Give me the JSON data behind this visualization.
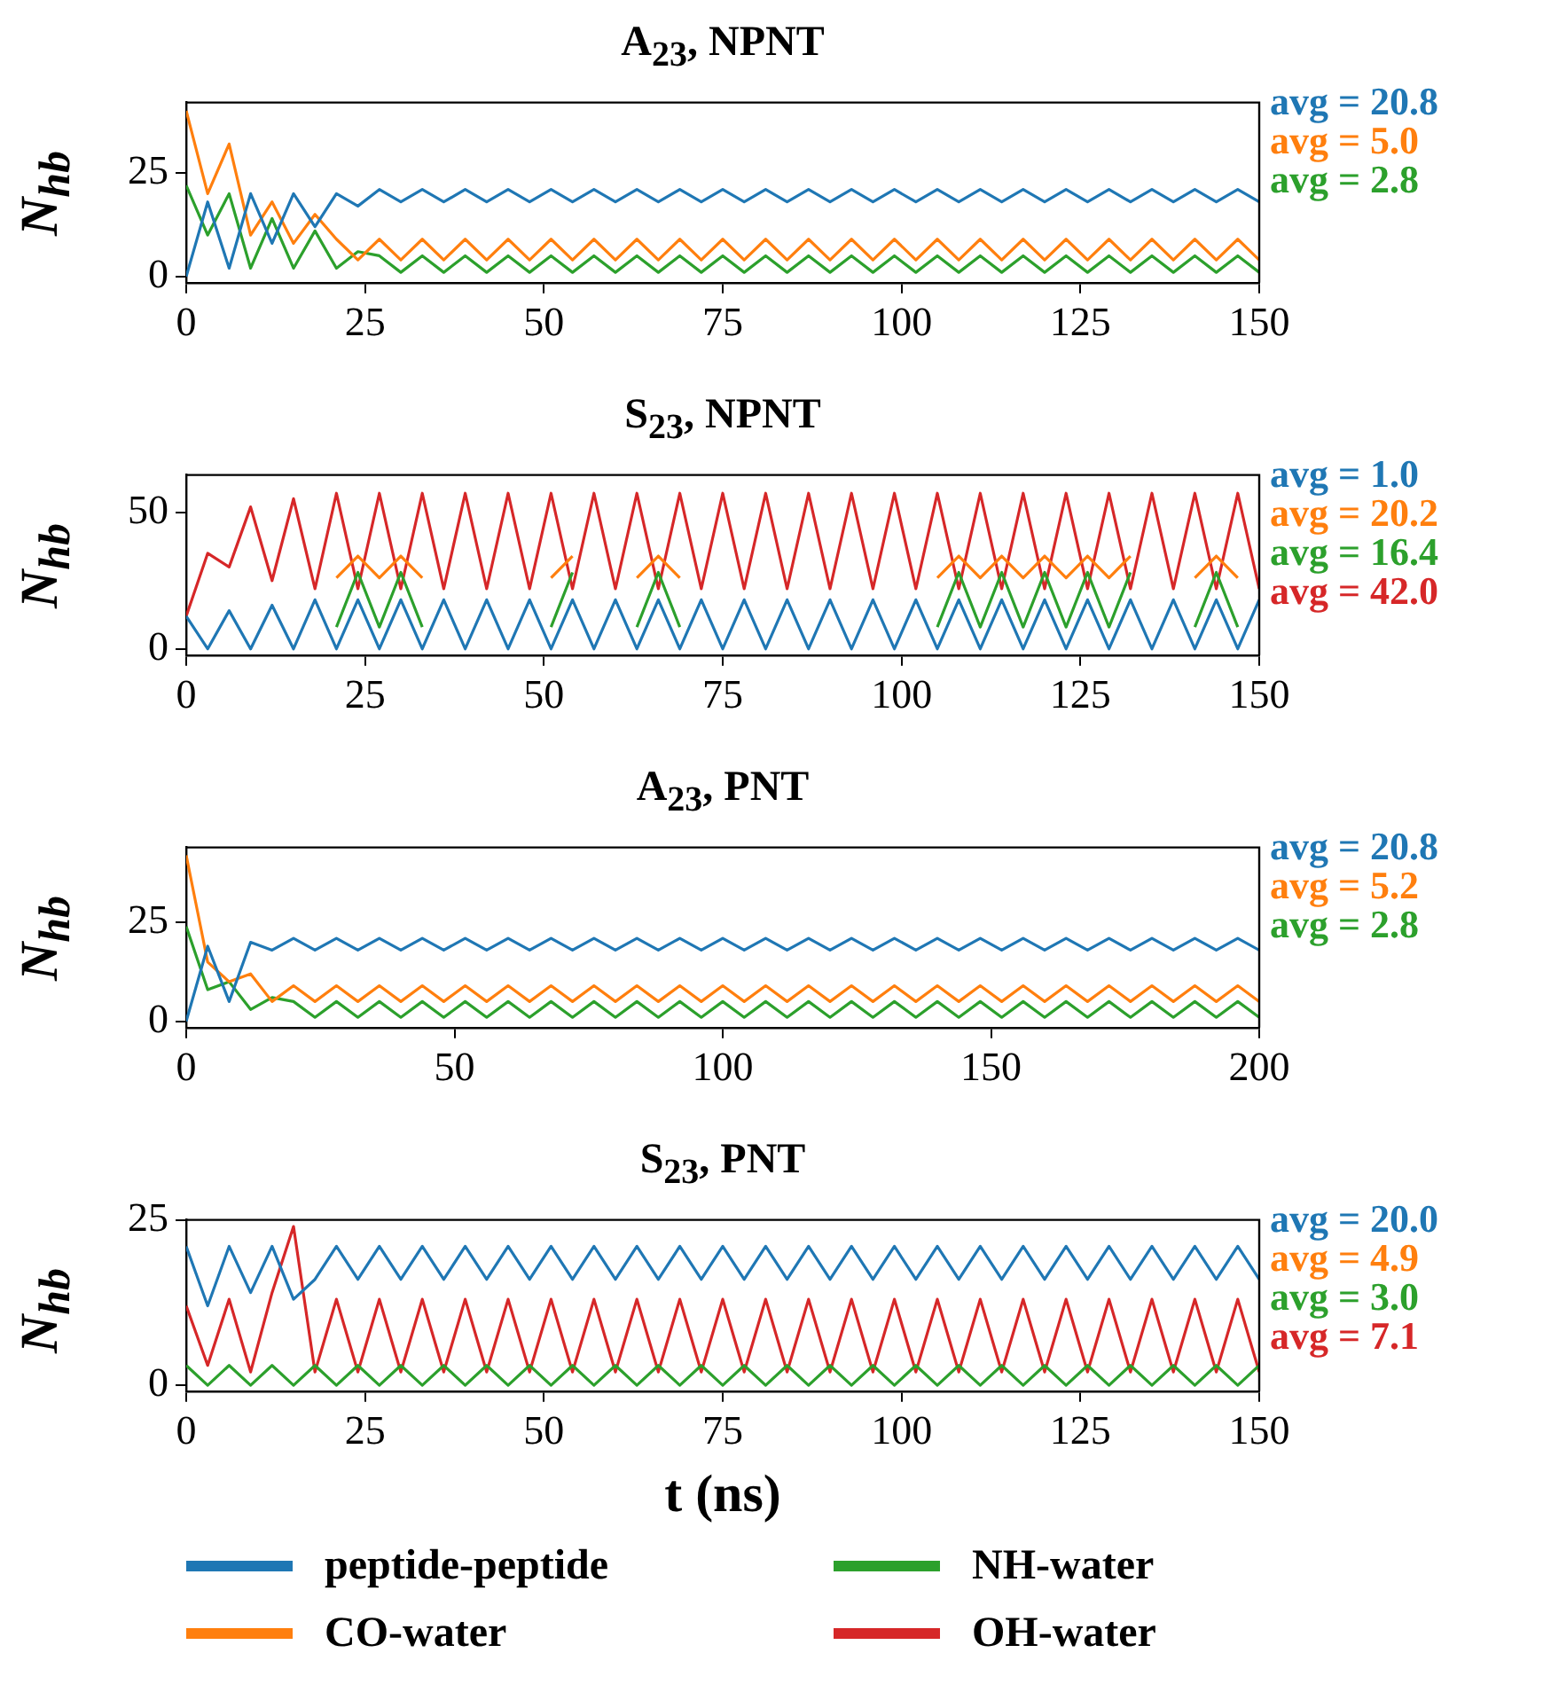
{
  "chart_data": [
    {
      "type": "line",
      "title": "A$_{23}$, NPNT",
      "ylabel": "N$_{hb}$",
      "x": [
        0,
        3,
        6,
        9,
        12,
        15,
        18,
        21,
        24,
        27,
        30,
        33,
        36,
        39,
        42,
        45,
        48,
        51,
        54,
        57,
        60,
        63,
        66,
        69,
        72,
        75,
        78,
        81,
        84,
        87,
        90,
        93,
        96,
        99,
        102,
        105,
        108,
        111,
        114,
        117,
        120,
        123,
        126,
        129,
        132,
        135,
        138,
        141,
        144,
        147,
        150
      ],
      "series": [
        {
          "color": "#1f77b4",
          "values": [
            0,
            18,
            2,
            20,
            8,
            20,
            12,
            20,
            17,
            21,
            18,
            21,
            18,
            21,
            18,
            21,
            18,
            21,
            18,
            21,
            18,
            21,
            18,
            21,
            18,
            21,
            18,
            21,
            18,
            21,
            18,
            21,
            18,
            21,
            18,
            21,
            18,
            21,
            18,
            21,
            18,
            21,
            18,
            21,
            18,
            21,
            18,
            21,
            18,
            21,
            18
          ]
        },
        {
          "color": "#ff7f0e",
          "values": [
            40,
            20,
            32,
            10,
            18,
            8,
            15,
            9,
            4,
            9,
            4,
            9,
            4,
            9,
            4,
            9,
            4,
            9,
            4,
            9,
            4,
            9,
            4,
            9,
            4,
            9,
            4,
            9,
            4,
            9,
            4,
            9,
            4,
            9,
            4,
            9,
            4,
            9,
            4,
            9,
            4,
            9,
            4,
            9,
            4,
            9,
            4,
            9,
            4,
            9,
            4
          ]
        },
        {
          "color": "#2ca02c",
          "values": [
            22,
            10,
            20,
            2,
            14,
            2,
            11,
            2,
            6,
            5,
            1,
            5,
            1,
            5,
            1,
            5,
            1,
            5,
            1,
            5,
            1,
            5,
            1,
            5,
            1,
            5,
            1,
            5,
            1,
            5,
            1,
            5,
            1,
            5,
            1,
            5,
            1,
            5,
            1,
            5,
            1,
            5,
            1,
            5,
            1,
            5,
            1,
            5,
            1,
            5,
            1
          ]
        }
      ],
      "annotations": [
        "avg = 20.8",
        "avg = 5.0",
        "avg = 2.8"
      ],
      "xlim": [
        0,
        150
      ],
      "xticks": [
        0,
        25,
        50,
        75,
        100,
        125,
        150
      ],
      "ylim": [
        -1.5,
        42
      ],
      "yticks": [
        0,
        25
      ]
    },
    {
      "type": "line",
      "title": "S$_{23}$, NPNT",
      "ylabel": "N$_{hb}$",
      "x": [
        0,
        3,
        6,
        9,
        12,
        15,
        18,
        21,
        24,
        27,
        30,
        33,
        36,
        39,
        42,
        45,
        48,
        51,
        54,
        57,
        60,
        63,
        66,
        69,
        72,
        75,
        78,
        81,
        84,
        87,
        90,
        93,
        96,
        99,
        102,
        105,
        108,
        111,
        114,
        117,
        120,
        123,
        126,
        129,
        132,
        135,
        138,
        141,
        144,
        147,
        150
      ],
      "series": [
        {
          "color": "#1f77b4",
          "values": [
            12,
            0,
            14,
            0,
            16,
            0,
            18,
            0,
            18,
            0,
            18,
            0,
            18,
            0,
            18,
            0,
            18,
            0,
            18,
            0,
            18,
            0,
            18,
            0,
            18,
            0,
            18,
            0,
            18,
            0,
            18,
            0,
            18,
            0,
            18,
            0,
            18,
            0,
            18,
            0,
            18,
            0,
            18,
            0,
            18,
            0,
            18,
            0,
            18,
            0,
            18
          ]
        },
        {
          "color": "#ff7f0e",
          "values": [
            null,
            null,
            null,
            null,
            null,
            null,
            null,
            26,
            34,
            26,
            34,
            26,
            null,
            null,
            null,
            null,
            null,
            26,
            34,
            null,
            null,
            26,
            34,
            26,
            null,
            null,
            null,
            null,
            null,
            null,
            null,
            null,
            null,
            null,
            null,
            26,
            34,
            26,
            34,
            26,
            34,
            26,
            34,
            26,
            34,
            null,
            null,
            26,
            34,
            26,
            null
          ]
        },
        {
          "color": "#2ca02c",
          "values": [
            null,
            null,
            null,
            null,
            null,
            null,
            null,
            8,
            28,
            8,
            28,
            8,
            null,
            null,
            null,
            null,
            null,
            8,
            28,
            null,
            null,
            8,
            28,
            8,
            null,
            null,
            null,
            null,
            null,
            null,
            null,
            null,
            null,
            null,
            null,
            8,
            28,
            8,
            28,
            8,
            28,
            8,
            28,
            8,
            28,
            null,
            null,
            8,
            28,
            8,
            null
          ]
        },
        {
          "color": "#d62728",
          "values": [
            12,
            35,
            30,
            52,
            25,
            55,
            22,
            57,
            22,
            57,
            22,
            57,
            22,
            57,
            22,
            57,
            22,
            57,
            22,
            57,
            22,
            57,
            22,
            57,
            22,
            57,
            22,
            57,
            22,
            57,
            22,
            57,
            22,
            57,
            22,
            57,
            22,
            57,
            22,
            57,
            22,
            57,
            22,
            57,
            22,
            57,
            22,
            57,
            22,
            57,
            22
          ]
        }
      ],
      "annotations": [
        "avg = 1.0",
        "avg = 20.2",
        "avg = 16.4",
        "avg = 42.0"
      ],
      "xlim": [
        0,
        150
      ],
      "xticks": [
        0,
        25,
        50,
        75,
        100,
        125,
        150
      ],
      "ylim": [
        -2.3,
        63.7
      ],
      "yticks": [
        0,
        50
      ]
    },
    {
      "type": "line",
      "title": "A$_{23}$, PNT",
      "ylabel": "N$_{hb}$",
      "x": [
        0,
        4,
        8,
        12,
        16,
        20,
        24,
        28,
        32,
        36,
        40,
        44,
        48,
        52,
        56,
        60,
        64,
        68,
        72,
        76,
        80,
        84,
        88,
        92,
        96,
        100,
        104,
        108,
        112,
        116,
        120,
        124,
        128,
        132,
        136,
        140,
        144,
        148,
        152,
        156,
        160,
        164,
        168,
        172,
        176,
        180,
        184,
        188,
        192,
        196,
        200
      ],
      "series": [
        {
          "color": "#1f77b4",
          "values": [
            0,
            19,
            5,
            20,
            18,
            21,
            18,
            21,
            18,
            21,
            18,
            21,
            18,
            21,
            18,
            21,
            18,
            21,
            18,
            21,
            18,
            21,
            18,
            21,
            18,
            21,
            18,
            21,
            18,
            21,
            18,
            21,
            18,
            21,
            18,
            21,
            18,
            21,
            18,
            21,
            18,
            21,
            18,
            21,
            18,
            21,
            18,
            21,
            18,
            21,
            18
          ]
        },
        {
          "color": "#ff7f0e",
          "values": [
            42,
            15,
            10,
            12,
            5,
            9,
            5,
            9,
            5,
            9,
            5,
            9,
            5,
            9,
            5,
            9,
            5,
            9,
            5,
            9,
            5,
            9,
            5,
            9,
            5,
            9,
            5,
            9,
            5,
            9,
            5,
            9,
            5,
            9,
            5,
            9,
            5,
            9,
            5,
            9,
            5,
            9,
            5,
            9,
            5,
            9,
            5,
            9,
            5,
            9,
            5
          ]
        },
        {
          "color": "#2ca02c",
          "values": [
            24,
            8,
            10,
            3,
            6,
            5,
            1,
            5,
            1,
            5,
            1,
            5,
            1,
            5,
            1,
            5,
            1,
            5,
            1,
            5,
            1,
            5,
            1,
            5,
            1,
            5,
            1,
            5,
            1,
            5,
            1,
            5,
            1,
            5,
            1,
            5,
            1,
            5,
            1,
            5,
            1,
            5,
            1,
            5,
            1,
            5,
            1,
            5,
            1,
            5,
            1
          ]
        }
      ],
      "annotations": [
        "avg = 20.8",
        "avg = 5.2",
        "avg = 2.8"
      ],
      "xlim": [
        0,
        200
      ],
      "xticks": [
        0,
        50,
        100,
        150,
        200
      ],
      "ylim": [
        -1.6,
        44
      ],
      "yticks": [
        0,
        25
      ]
    },
    {
      "type": "line",
      "title": "S$_{23}$, PNT",
      "ylabel": "N$_{hb}$",
      "xlabel": "t (ns)",
      "legend": "bottom",
      "x": [
        0,
        3,
        6,
        9,
        12,
        15,
        18,
        21,
        24,
        27,
        30,
        33,
        36,
        39,
        42,
        45,
        48,
        51,
        54,
        57,
        60,
        63,
        66,
        69,
        72,
        75,
        78,
        81,
        84,
        87,
        90,
        93,
        96,
        99,
        102,
        105,
        108,
        111,
        114,
        117,
        120,
        123,
        126,
        129,
        132,
        135,
        138,
        141,
        144,
        147,
        150
      ],
      "series": [
        {
          "name": "peptide-peptide",
          "color": "#1f77b4",
          "values": [
            21,
            12,
            21,
            14,
            21,
            13,
            16,
            21,
            16,
            21,
            16,
            21,
            16,
            21,
            16,
            21,
            16,
            21,
            16,
            21,
            16,
            21,
            16,
            21,
            16,
            21,
            16,
            21,
            16,
            21,
            16,
            21,
            16,
            21,
            16,
            21,
            16,
            21,
            16,
            21,
            16,
            21,
            16,
            21,
            16,
            21,
            16,
            21,
            16,
            21,
            16
          ]
        },
        {
          "name": "CO-water",
          "color": "#ff7f0e",
          "values": [
            null,
            null,
            null,
            null,
            null,
            null,
            null,
            null,
            null,
            null,
            null,
            null,
            null,
            null,
            null,
            null,
            null,
            null,
            null,
            null,
            null,
            null,
            null,
            null,
            null,
            null,
            null,
            null,
            null,
            null,
            null,
            null,
            null,
            null,
            null,
            null,
            null,
            null,
            null,
            null,
            null,
            null,
            null,
            null,
            null,
            null,
            null,
            null,
            null,
            null,
            null
          ]
        },
        {
          "name": "NH-water",
          "color": "#2ca02c",
          "values": [
            3,
            0,
            3,
            0,
            3,
            0,
            3,
            0,
            3,
            0,
            3,
            0,
            3,
            0,
            3,
            0,
            3,
            0,
            3,
            0,
            3,
            0,
            3,
            0,
            3,
            0,
            3,
            0,
            3,
            0,
            3,
            0,
            3,
            0,
            3,
            0,
            3,
            0,
            3,
            0,
            3,
            0,
            3,
            0,
            3,
            0,
            3,
            0,
            3,
            0,
            3
          ]
        },
        {
          "name": "OH-water",
          "color": "#d62728",
          "values": [
            12,
            3,
            13,
            2,
            14,
            24,
            2,
            13,
            2,
            13,
            2,
            13,
            2,
            13,
            2,
            13,
            2,
            13,
            2,
            13,
            2,
            13,
            2,
            13,
            2,
            13,
            2,
            13,
            2,
            13,
            2,
            13,
            2,
            13,
            2,
            13,
            2,
            13,
            2,
            13,
            2,
            13,
            2,
            13,
            2,
            13,
            2,
            13,
            2,
            13,
            2
          ]
        }
      ],
      "annotations": [
        "avg = 20.0",
        "avg = 4.9",
        "avg = 3.0",
        "avg = 7.1"
      ],
      "xlim": [
        0,
        150
      ],
      "xticks": [
        0,
        25,
        50,
        75,
        100,
        125,
        150
      ],
      "ylim": [
        -0.9,
        25
      ],
      "yticks": [
        0,
        25
      ]
    }
  ]
}
